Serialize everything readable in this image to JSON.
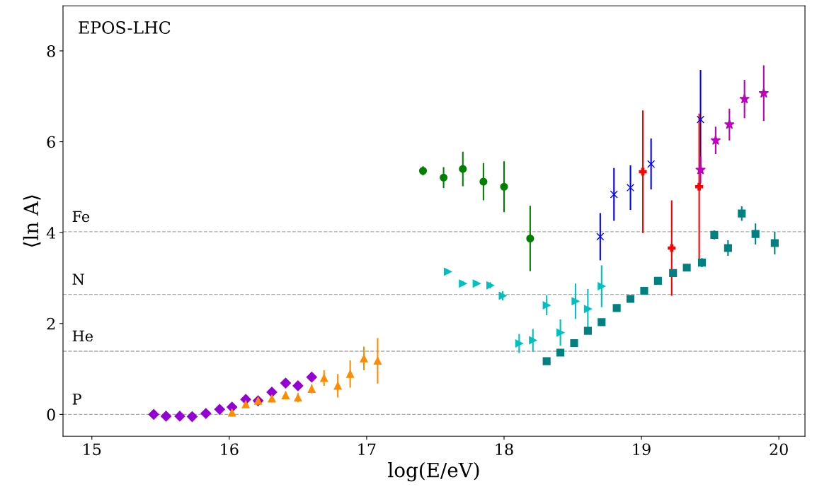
{
  "chart_data": {
    "type": "scatter",
    "xlabel": "log(E/eV)",
    "ylabel": "⟨ln A⟩",
    "annotations": [
      "EPOS-LHC"
    ],
    "xlim": [
      14.79,
      20.19
    ],
    "ylim": [
      -0.48,
      8.99
    ],
    "xticks": [
      15,
      16,
      17,
      18,
      19,
      20
    ],
    "yticks": [
      0,
      2,
      4,
      6,
      8
    ],
    "grid": false,
    "legend": false,
    "ref_lines": [
      {
        "axis": "y",
        "value": 4.02,
        "label": "Fe",
        "color": "#aaaaaa",
        "line_style": "dashed"
      },
      {
        "axis": "y",
        "value": 2.64,
        "label": "N",
        "color": "#aaaaaa",
        "line_style": "dashed"
      },
      {
        "axis": "y",
        "value": 1.39,
        "label": "He",
        "color": "#aaaaaa",
        "line_style": "dashed"
      },
      {
        "axis": "y",
        "value": 0,
        "label": "P",
        "color": "#aaaaaa",
        "line_style": "dashed"
      }
    ],
    "series": [
      {
        "color": "#9400d3",
        "marker": "diamond",
        "x": [
          15.45,
          15.54,
          15.64,
          15.73,
          15.83,
          15.93,
          16.02,
          16.12,
          16.21,
          16.31,
          16.41,
          16.5,
          16.6
        ],
        "values": [
          0.0,
          -0.04,
          -0.04,
          -0.05,
          0.02,
          0.11,
          0.16,
          0.33,
          0.3,
          0.49,
          0.69,
          0.63,
          0.82
        ],
        "errors": [
          0.04,
          0.04,
          0.04,
          0.04,
          0.04,
          0.04,
          0.04,
          0.05,
          0.05,
          0.05,
          0.06,
          0.06,
          0.1
        ]
      },
      {
        "color": "#ff8c00",
        "marker": "triangle",
        "x": [
          16.02,
          16.12,
          16.21,
          16.31,
          16.41,
          16.5,
          16.6,
          16.69,
          16.79,
          16.88,
          16.98,
          17.08
        ],
        "values": [
          0.04,
          0.22,
          0.3,
          0.35,
          0.42,
          0.37,
          0.56,
          0.8,
          0.63,
          0.89,
          1.23,
          1.18
        ],
        "errors": [
          0.05,
          0.06,
          0.06,
          0.06,
          0.08,
          0.1,
          0.1,
          0.17,
          0.26,
          0.3,
          0.26,
          0.5
        ]
      },
      {
        "color": "#008000",
        "marker": "circle",
        "x": [
          17.41,
          17.56,
          17.7,
          17.85,
          18.0,
          18.19
        ],
        "values": [
          5.36,
          5.21,
          5.4,
          5.12,
          5.01,
          3.87
        ],
        "errors": [
          0.1,
          0.23,
          0.38,
          0.41,
          0.56,
          0.72
        ]
      },
      {
        "color": "#00c0c0",
        "marker": "triangle_right",
        "x": [
          17.59,
          17.7,
          17.8,
          17.9,
          17.99,
          18.11,
          18.21,
          18.31,
          18.41,
          18.52,
          18.61,
          18.71
        ],
        "values": [
          3.14,
          2.88,
          2.88,
          2.84,
          2.61,
          1.56,
          1.63,
          2.4,
          1.8,
          2.49,
          2.32,
          2.82
        ],
        "errors": [
          0.05,
          0.05,
          0.05,
          0.07,
          0.1,
          0.21,
          0.25,
          0.22,
          0.29,
          0.39,
          0.44,
          0.46
        ]
      },
      {
        "color": "#008080",
        "marker": "square",
        "x": [
          18.31,
          18.41,
          18.51,
          18.61,
          18.71,
          18.82,
          18.92,
          19.02,
          19.12,
          19.23,
          19.33,
          19.44,
          19.53,
          19.63,
          19.73,
          19.83,
          19.97
        ],
        "values": [
          1.17,
          1.36,
          1.57,
          1.84,
          2.03,
          2.34,
          2.54,
          2.72,
          2.94,
          3.11,
          3.23,
          3.34,
          3.95,
          3.66,
          4.42,
          3.97,
          3.77
        ],
        "errors": [
          0.03,
          0.03,
          0.03,
          0.03,
          0.03,
          0.03,
          0.03,
          0.03,
          0.03,
          0.03,
          0.03,
          0.1,
          0.1,
          0.17,
          0.16,
          0.23,
          0.25
        ]
      },
      {
        "color": "#0000ff",
        "marker": "cross",
        "x": [
          18.7,
          18.8,
          18.92,
          19.07,
          19.43
        ],
        "values": [
          3.91,
          4.84,
          4.99,
          5.51,
          6.49
        ],
        "errors": [
          0.52,
          0.58,
          0.49,
          0.56,
          1.09
        ]
      },
      {
        "color": "#ff0000",
        "marker": "plus",
        "x": [
          19.01,
          19.22,
          19.42
        ],
        "values": [
          5.34,
          3.66,
          5.01
        ],
        "errors": [
          1.35,
          1.05,
          1.61
        ]
      },
      {
        "color": "#bf00bf",
        "marker": "star",
        "x": [
          19.43,
          19.54,
          19.64,
          19.75,
          19.89
        ],
        "values": [
          5.38,
          6.03,
          6.38,
          6.94,
          7.07
        ],
        "errors": [
          0.3,
          0.3,
          0.35,
          0.42,
          0.61
        ]
      }
    ]
  }
}
